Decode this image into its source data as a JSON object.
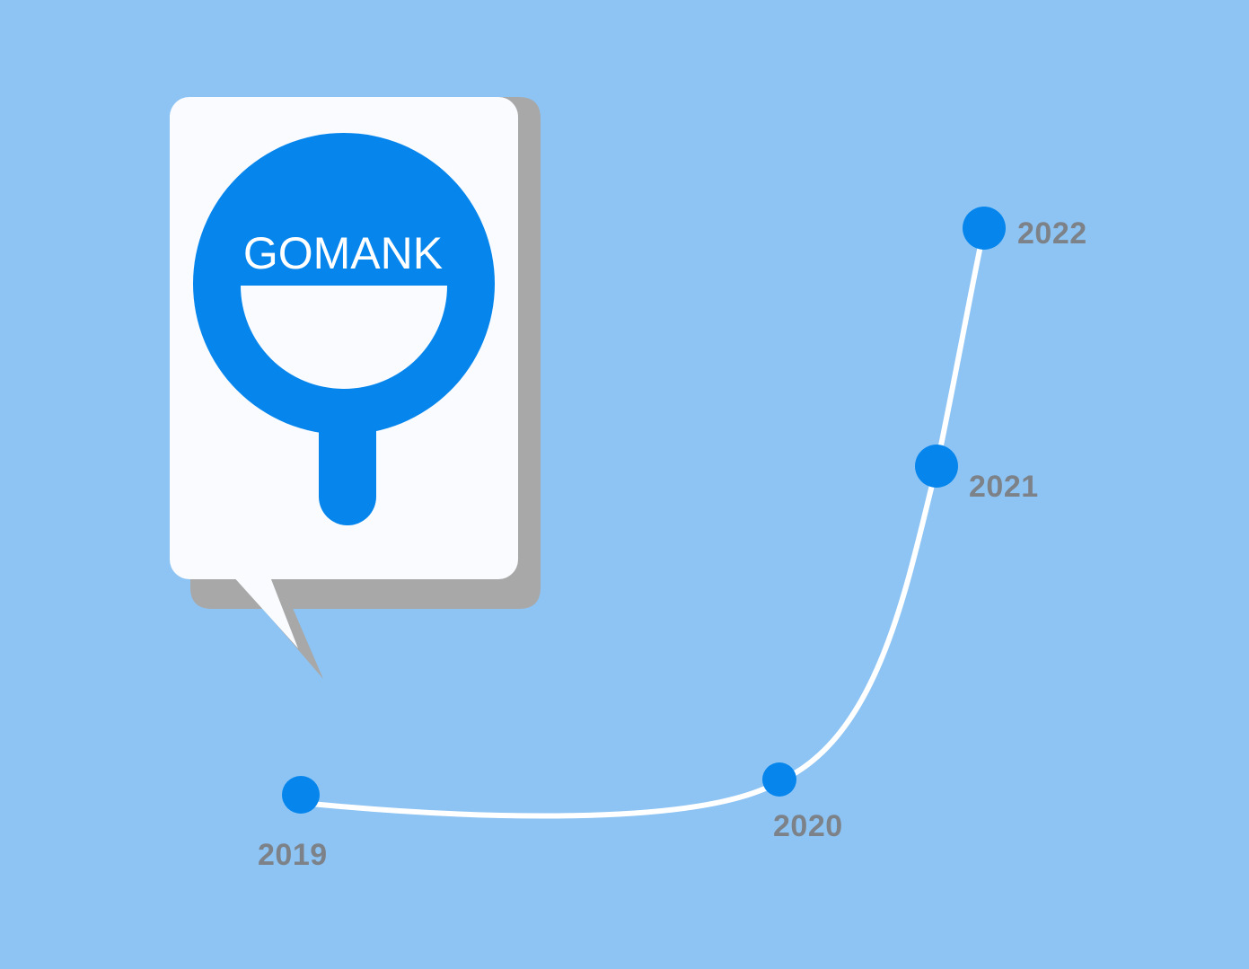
{
  "brand": {
    "name": "GOMANK",
    "icon": "magnifier-face-icon",
    "colors": {
      "primary": "#0686ed",
      "card": "#f9fbfe",
      "shadow": "#a8a8a8",
      "background": "#8dc4f4"
    }
  },
  "timeline": {
    "line_color": "#ffffff",
    "dot_color": "#0686ed",
    "label_color": "#7d8289",
    "milestones": [
      {
        "year": "2019"
      },
      {
        "year": "2020"
      },
      {
        "year": "2021"
      },
      {
        "year": "2022"
      }
    ]
  }
}
